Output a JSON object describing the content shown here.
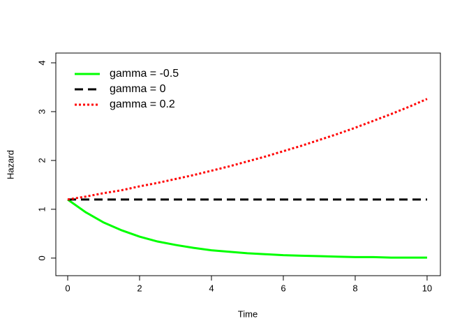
{
  "chart_data": {
    "type": "line",
    "x_label": "Time",
    "y_label": "Hazard",
    "x": [
      0,
      0.5,
      1,
      1.5,
      2,
      2.5,
      3,
      3.5,
      4,
      4.5,
      5,
      5.5,
      6,
      6.5,
      7,
      7.5,
      8,
      8.5,
      9,
      9.5,
      10
    ],
    "series": [
      {
        "name": "gamma = -0.5",
        "color": "#00ff00",
        "dash": "solid",
        "values": [
          1.2,
          0.94,
          0.73,
          0.57,
          0.44,
          0.34,
          0.27,
          0.21,
          0.16,
          0.13,
          0.1,
          0.08,
          0.06,
          0.05,
          0.04,
          0.03,
          0.02,
          0.02,
          0.01,
          0.01,
          0.01
        ]
      },
      {
        "name": "gamma = 0",
        "color": "#000000",
        "dash": "dashed",
        "values": [
          1.2,
          1.2,
          1.2,
          1.2,
          1.2,
          1.2,
          1.2,
          1.2,
          1.2,
          1.2,
          1.2,
          1.2,
          1.2,
          1.2,
          1.2,
          1.2,
          1.2,
          1.2,
          1.2,
          1.2,
          1.2
        ]
      },
      {
        "name": "gamma = 0.2",
        "color": "#ff0000",
        "dash": "dotted",
        "values": [
          1.2,
          1.26,
          1.33,
          1.39,
          1.47,
          1.54,
          1.62,
          1.7,
          1.79,
          1.88,
          1.98,
          2.08,
          2.19,
          2.3,
          2.42,
          2.54,
          2.67,
          2.81,
          2.95,
          3.1,
          3.26
        ]
      }
    ],
    "xlim": [
      -0.33,
      10.37
    ],
    "ylim": [
      -0.36,
      4.2
    ],
    "xticks": [
      0,
      2,
      4,
      6,
      8,
      10
    ],
    "yticks": [
      0,
      1,
      2,
      3,
      4
    ],
    "legend": "top-left"
  }
}
